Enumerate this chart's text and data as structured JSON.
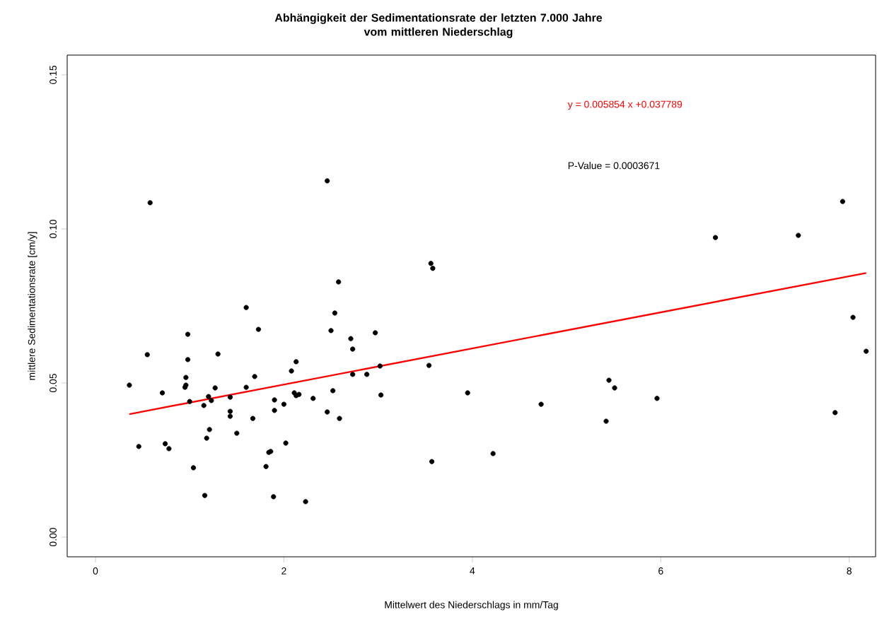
{
  "chart_data": {
    "type": "scatter",
    "title": "Abhängigkeit der Sedimentationsrate der letzten 7.000 Jahre\nvom mittleren Niederschlag",
    "xlabel": "Mittelwert des Niederschlags in mm/Tag",
    "ylabel": "mittlere Sedimentationsrate [cm/y]",
    "xlim": [
      -0.3,
      8.28
    ],
    "ylim": [
      -0.0064,
      0.1564
    ],
    "xticks": [
      0,
      2,
      4,
      6,
      8
    ],
    "yticks": [
      {
        "value": 0,
        "label": "0.00"
      },
      {
        "value": 0.05,
        "label": "0.05"
      },
      {
        "value": 0.1,
        "label": "0.10"
      },
      {
        "value": 0.15,
        "label": "0.15"
      }
    ],
    "series": [
      {
        "color": "#000000",
        "x": [
          0.36,
          0.46,
          0.55,
          0.58,
          0.71,
          0.74,
          0.78,
          0.96,
          0.96,
          0.95,
          0.98,
          0.98,
          1.0,
          1.04,
          1.15,
          1.16,
          1.18,
          1.2,
          1.21,
          1.23,
          1.27,
          1.3,
          1.43,
          1.43,
          1.43,
          1.5,
          1.6,
          1.6,
          1.67,
          1.69,
          1.73,
          1.81,
          1.84,
          1.86,
          1.89,
          1.9,
          1.9,
          2.0,
          2.02,
          2.08,
          2.13,
          2.11,
          2.13,
          2.16,
          2.23,
          2.31,
          2.46,
          2.46,
          2.5,
          2.54,
          2.52,
          2.58,
          2.59,
          2.71,
          2.73,
          2.73,
          2.88,
          2.97,
          3.02,
          3.03,
          3.54,
          3.56,
          3.58,
          3.57,
          3.95,
          4.22,
          4.73,
          5.42,
          5.45,
          5.51,
          5.96,
          6.58,
          7.46,
          7.85,
          7.93,
          8.04,
          8.18
        ],
        "values": [
          0.0493,
          0.0294,
          0.0592,
          0.1085,
          0.0468,
          0.0303,
          0.0287,
          0.0518,
          0.0493,
          0.0486,
          0.0576,
          0.0658,
          0.044,
          0.0225,
          0.0427,
          0.0135,
          0.0321,
          0.0456,
          0.0349,
          0.0443,
          0.0484,
          0.0594,
          0.0454,
          0.0408,
          0.0392,
          0.0337,
          0.0745,
          0.0486,
          0.0385,
          0.0521,
          0.0674,
          0.0229,
          0.0275,
          0.0278,
          0.0131,
          0.0445,
          0.0411,
          0.0431,
          0.0305,
          0.0539,
          0.0569,
          0.0468,
          0.0459,
          0.0463,
          0.0115,
          0.045,
          0.0406,
          0.1156,
          0.067,
          0.0727,
          0.0475,
          0.0828,
          0.0385,
          0.0644,
          0.061,
          0.0528,
          0.0528,
          0.0663,
          0.0555,
          0.0461,
          0.0557,
          0.0888,
          0.0872,
          0.0245,
          0.0468,
          0.0271,
          0.0431,
          0.0376,
          0.0509,
          0.0484,
          0.045,
          0.0972,
          0.0979,
          0.0404,
          0.1089,
          0.0713,
          0.0603
        ]
      },
      {
        "type": "line",
        "name": "y = 0.005854 x +0.037789",
        "color": "#ff0000",
        "x": [
          0.36,
          8.18
        ],
        "values": [
          0.0399,
          0.0857
        ]
      }
    ],
    "annotations": [
      "P-Value = 0.0003671"
    ]
  }
}
